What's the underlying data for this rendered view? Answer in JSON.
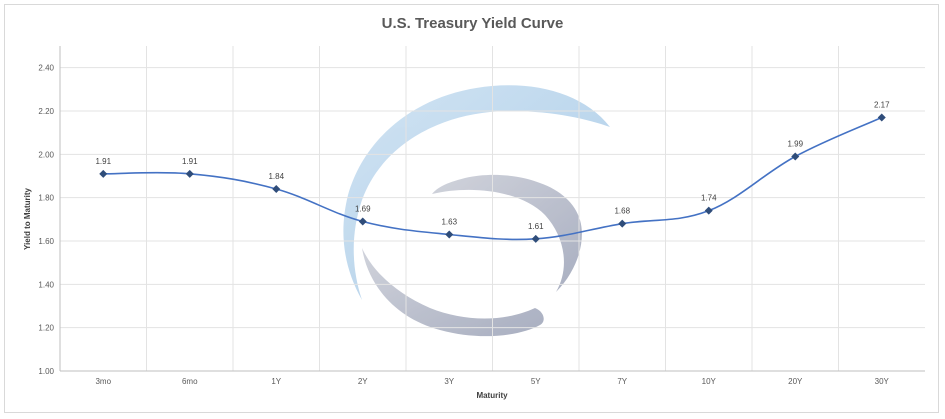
{
  "chart_data": {
    "type": "line",
    "title": "U.S. Treasury  Yield Curve",
    "xlabel": "Maturity",
    "ylabel": "Yield to Maturity",
    "categories": [
      "3mo",
      "6mo",
      "1Y",
      "2Y",
      "3Y",
      "5Y",
      "7Y",
      "10Y",
      "20Y",
      "30Y"
    ],
    "series": [
      {
        "values": [
          1.91,
          1.91,
          1.84,
          1.69,
          1.63,
          1.61,
          1.68,
          1.74,
          1.99,
          2.17
        ],
        "data_labels": [
          "1.91",
          "1.91",
          "1.84",
          "1.69",
          "1.63",
          "1.61",
          "1.68",
          "1.74",
          "1.99",
          "2.17"
        ],
        "color": "#4472c4",
        "marker_color": "#2f4d7a",
        "marker": "diamond",
        "smooth": true
      }
    ],
    "ylim": [
      1.0,
      2.5
    ],
    "yticks": [
      "1.00",
      "1.20",
      "1.40",
      "1.60",
      "1.80",
      "2.00",
      "2.20",
      "2.40"
    ],
    "grid": true,
    "legend": "none",
    "watermark": "logo"
  }
}
